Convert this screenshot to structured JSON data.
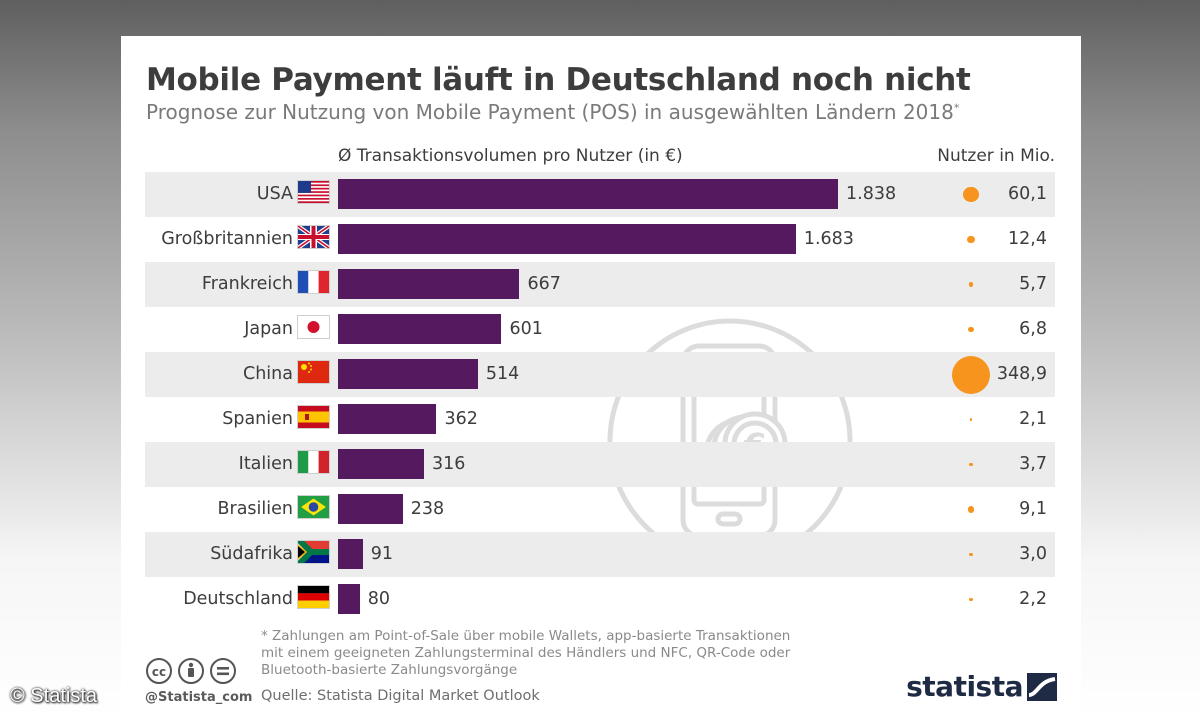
{
  "header": {
    "title": "Mobile Payment läuft in Deutschland noch nicht",
    "subtitle": "Prognose zur Nutzung von Mobile Payment (POS) in ausgewählten Ländern 2018",
    "subtitle_mark": "*"
  },
  "columns": {
    "left_header": "Ø Transaktionsvolumen pro Nutzer (in €)",
    "right_header": "Nutzer in Mio."
  },
  "chart_data": {
    "type": "bar",
    "orientation": "horizontal",
    "title": "Mobile Payment läuft in Deutschland noch nicht",
    "xlabel": "Ø Transaktionsvolumen pro Nutzer (in €)",
    "categories": [
      "USA",
      "Großbritannien",
      "Frankreich",
      "Japan",
      "China",
      "Spanien",
      "Italien",
      "Brasilien",
      "Südafrika",
      "Deutschland"
    ],
    "values": [
      1838,
      1683,
      667,
      601,
      514,
      362,
      316,
      238,
      91,
      80
    ],
    "value_labels": [
      "1.838",
      "1.683",
      "667",
      "601",
      "514",
      "362",
      "316",
      "238",
      "91",
      "80"
    ],
    "xlim": [
      0,
      2000
    ],
    "bar_color": "#55195f",
    "secondary_series": {
      "name": "Nutzer in Mio.",
      "type": "bubble",
      "values": [
        60.1,
        12.4,
        5.7,
        6.8,
        348.9,
        2.1,
        3.7,
        9.1,
        3.0,
        2.2
      ],
      "value_labels": [
        "60,1",
        "12,4",
        "5,7",
        "6,8",
        "348,9",
        "2,1",
        "3,7",
        "9,1",
        "3,0",
        "2,2"
      ],
      "color": "#f7941d"
    }
  },
  "flags": [
    "us-flag",
    "gb-flag",
    "fr-flag",
    "jp-flag",
    "cn-flag",
    "es-flag",
    "it-flag",
    "br-flag",
    "za-flag",
    "de-flag"
  ],
  "footer": {
    "footnote": "* Zahlungen am Point-of-Sale über mobile Wallets, app-basierte Transaktionen\n   mit einem geeigneten Zahlungsterminal des Händlers und NFC, QR-Code oder\n   Bluetooth-basierte Zahlungsvorgänge",
    "source": "Quelle: Statista Digital Market Outlook",
    "handle": "@Statista_com",
    "brand": "statista",
    "copyright": "© Statista"
  },
  "colors": {
    "bar": "#55195f",
    "bubble": "#f7941d",
    "shade": "#ececec"
  }
}
